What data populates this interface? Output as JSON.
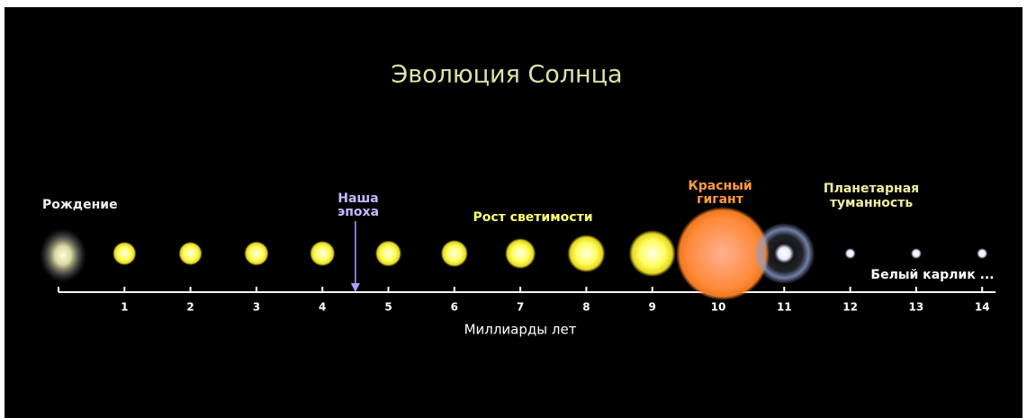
{
  "title": "Эволюция Солнца",
  "stages": {
    "birth": "Рождение",
    "our_epoch": [
      "Наша",
      "эпоха"
    ],
    "luminosity_growth": "Рост светимости",
    "red_giant": [
      "Красный",
      "гигант"
    ],
    "planetary_nebula": [
      "Планетарная",
      "туманность"
    ],
    "white_dwarf": "Белый карлик ..."
  },
  "axis": {
    "label": "Миллиарды лет",
    "ticks": [
      1,
      2,
      3,
      4,
      5,
      6,
      7,
      8,
      9,
      10,
      11,
      12,
      13,
      14
    ]
  }
}
